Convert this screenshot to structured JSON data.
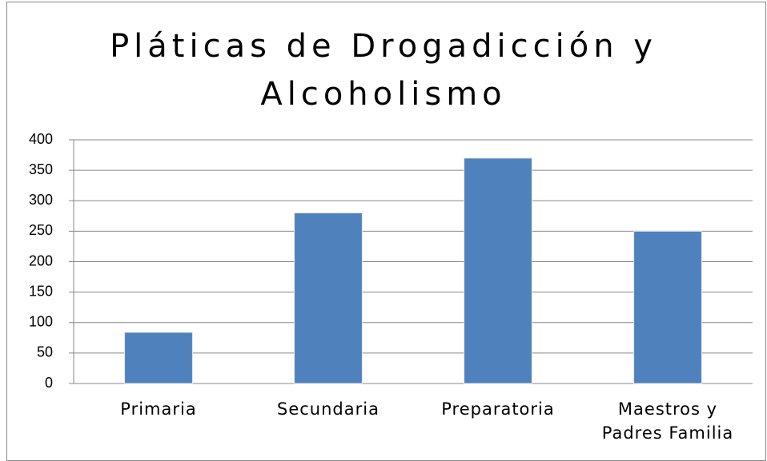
{
  "chart_data": {
    "type": "bar",
    "title": "Pláticas de Drogadicción y Alcoholismo",
    "categories": [
      "Primaria",
      "Secundaria",
      "Preparatoria",
      "Maestros y Padres Familia"
    ],
    "values": [
      84,
      280,
      370,
      250
    ],
    "color": "#4f81bd",
    "ylim": [
      0,
      400
    ],
    "yticks": [
      0,
      50,
      100,
      150,
      200,
      250,
      300,
      350,
      400
    ],
    "grid": true
  }
}
